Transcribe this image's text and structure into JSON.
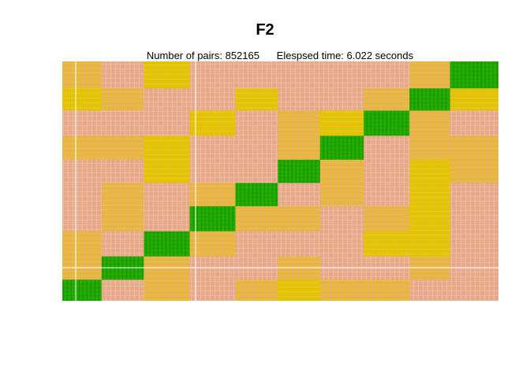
{
  "chart_data": {
    "type": "heatmap",
    "title": "F2",
    "subtitle": "Number of pairs: 852165      Elespsed time: 6.022 seconds",
    "xlabel": "",
    "ylabel": "",
    "colors": {
      "diagonal_block": "#22aa00",
      "high": "#e6c800",
      "mid": "#e8b44a",
      "low": "#e8a88c",
      "separator": "#ffffff"
    },
    "blocks_from_left": [
      {
        "index": 1,
        "relative_size": 0.09
      },
      {
        "index": 2,
        "relative_size": 0.097
      },
      {
        "index": 3,
        "relative_size": 0.105
      },
      {
        "index": 4,
        "relative_size": 0.105
      },
      {
        "index": 5,
        "relative_size": 0.097
      },
      {
        "index": 6,
        "relative_size": 0.097
      },
      {
        "index": 7,
        "relative_size": 0.1
      },
      {
        "index": 8,
        "relative_size": 0.105
      },
      {
        "index": 9,
        "relative_size": 0.093
      },
      {
        "index": 10,
        "relative_size": 0.111
      }
    ]
  }
}
